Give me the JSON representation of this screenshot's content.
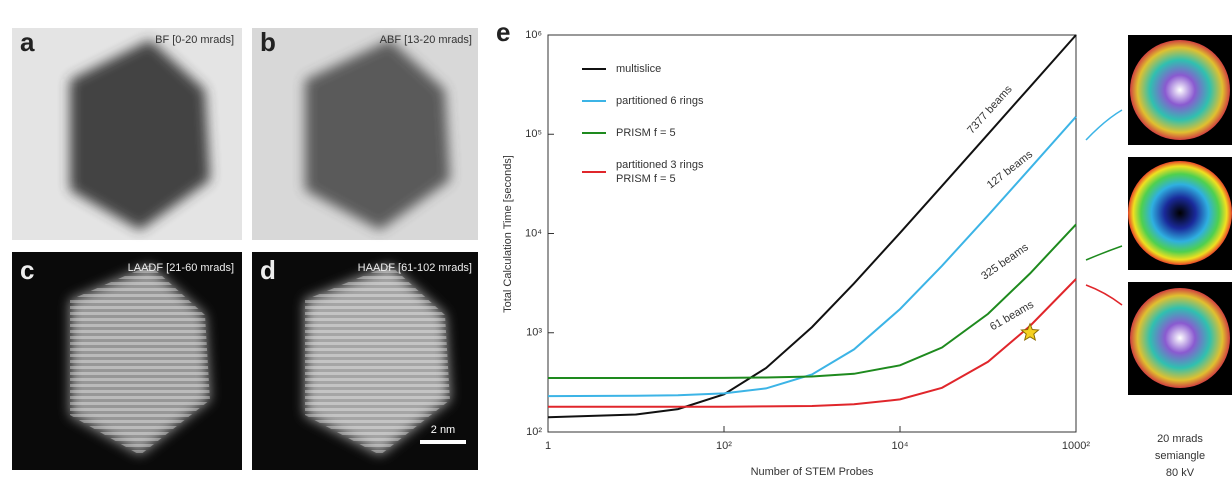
{
  "panels": [
    {
      "letter": "a",
      "caption": "BF  [0-20 mrads]"
    },
    {
      "letter": "b",
      "caption": "ABF  [13-20 mrads]"
    },
    {
      "letter": "c",
      "caption": "LAADF  [21-60 mrads]"
    },
    {
      "letter": "d",
      "caption": "HAADF  [61-102 mrads]"
    }
  ],
  "scale_bar": "2 nm",
  "right_caption": [
    "20 mrads",
    "semiangle",
    "80 kV"
  ],
  "chart_data": {
    "type": "line",
    "panel_letter": "e",
    "log_x": true,
    "log_y": true,
    "xlabel": "Number of STEM Probes",
    "ylabel": "Total Calculation Time [seconds]",
    "x": [
      1,
      10,
      30,
      100,
      300,
      1000,
      3000,
      10000,
      30000,
      100000,
      300000,
      1000000
    ],
    "series": [
      {
        "name": "multislice",
        "color": "#111111",
        "values": [
          141,
          150,
          170,
          240,
          440,
          1140,
          3140,
          10140,
          30140,
          100140,
          300140,
          1000140
        ]
      },
      {
        "name": "partitioned 6 rings",
        "color": "#3cb4e6",
        "values": [
          230,
          232,
          235,
          245,
          275,
          380,
          680,
          1730,
          4730,
          15230,
          45230,
          150230
        ]
      },
      {
        "name": "PRISM f = 5",
        "color": "#1e8a1e",
        "values": [
          350,
          350,
          350,
          351,
          354,
          362,
          386,
          470,
          710,
          1550,
          3950,
          12350
        ]
      },
      {
        "name": "partitioned 3 rings\nPRISM f = 5",
        "color": "#e0262b",
        "values": [
          180,
          180,
          180,
          180,
          181,
          183,
          190,
          213,
          279,
          510,
          1170,
          3480
        ]
      }
    ],
    "annotations": [
      "7377 beams",
      "127 beams",
      "325 beams",
      "61 beams"
    ],
    "star": {
      "x": 300000,
      "y": 1000,
      "color": "#f5d020"
    },
    "xlim": [
      1,
      1000000
    ],
    "ylim": [
      100,
      1000000
    ],
    "xticks": [
      1,
      {
        "value": 100,
        "label": "10²"
      },
      {
        "value": 10000,
        "label": "10⁴"
      },
      {
        "value": 1000000,
        "label": "1000²"
      }
    ],
    "yticks": [
      {
        "value": 100,
        "label": "10²"
      },
      {
        "value": 1000,
        "label": "10³"
      },
      {
        "value": 10000,
        "label": "10⁴"
      },
      {
        "value": 100000,
        "label": "10⁵"
      },
      {
        "value": 1000000,
        "label": "10⁶"
      }
    ]
  }
}
